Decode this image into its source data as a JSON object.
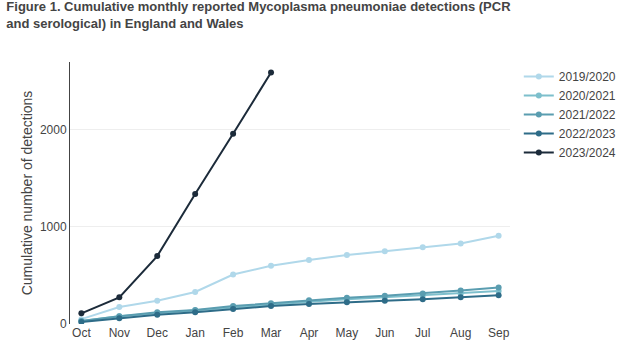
{
  "chart_data": {
    "type": "line",
    "title": "Figure 1. Cumulative monthly reported Mycoplasma pneumoniae detections (PCR and serological) in England and Wales",
    "ylabel": "Cumulative number of detections",
    "categories": [
      "Oct",
      "Nov",
      "Dec",
      "Jan",
      "Feb",
      "Mar",
      "Apr",
      "May",
      "Jun",
      "Jul",
      "Aug",
      "Sep"
    ],
    "series": [
      {
        "name": "2019/2020",
        "color": "#b0d8ea",
        "values": [
          50,
          175,
          240,
          330,
          510,
          600,
          660,
          710,
          750,
          790,
          830,
          910
        ]
      },
      {
        "name": "2020/2021",
        "color": "#7dbfcc",
        "values": [
          30,
          80,
          110,
          140,
          175,
          205,
          230,
          255,
          275,
          295,
          315,
          340
        ]
      },
      {
        "name": "2021/2022",
        "color": "#5a9db0",
        "values": [
          30,
          80,
          120,
          145,
          185,
          215,
          245,
          270,
          292,
          315,
          345,
          375
        ]
      },
      {
        "name": "2022/2023",
        "color": "#2e6c88",
        "values": [
          20,
          60,
          95,
          120,
          155,
          185,
          205,
          225,
          240,
          255,
          275,
          295
        ]
      },
      {
        "name": "2023/2024",
        "color": "#1c2b3a",
        "values": [
          110,
          275,
          700,
          1340,
          1960,
          2592,
          null,
          null,
          null,
          null,
          null,
          null
        ]
      }
    ],
    "ylim": [
      0,
      2700
    ],
    "yticks": [
      0,
      1000,
      2000
    ],
    "grid": true,
    "marker": "circle",
    "legend": "right"
  }
}
